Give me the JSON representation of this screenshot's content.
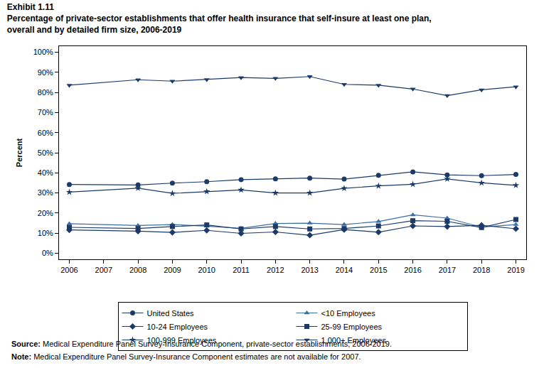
{
  "chart_data": {
    "type": "line",
    "title": "Exhibit 1.11",
    "subtitle": "Percentage of private-sector establishments that offer health insurance that self-insure at least one plan, overall and by detailed firm size, 2006-2019",
    "y_label": "Percent",
    "x": [
      2006,
      2008,
      2009,
      2010,
      2011,
      2012,
      2013,
      2014,
      2015,
      2016,
      2017,
      2018,
      2019
    ],
    "series": [
      {
        "name": "United States",
        "color": "#1b3a68",
        "marker": "circle",
        "values": [
          34.2,
          34.0,
          34.9,
          35.6,
          36.6,
          37.0,
          37.4,
          36.9,
          38.8,
          40.5,
          39.0,
          38.6,
          39.2
        ]
      },
      {
        "name": "<10 Employees",
        "color": "#3a6ea5",
        "marker": "triangle-up",
        "values": [
          14.7,
          13.8,
          14.3,
          13.5,
          12.4,
          14.8,
          15.0,
          14.3,
          15.8,
          19.1,
          17.5,
          13.0,
          14.3
        ]
      },
      {
        "name": "10-24 Employees",
        "color": "#1b3a68",
        "marker": "diamond",
        "values": [
          11.6,
          11.0,
          10.4,
          11.4,
          9.9,
          10.6,
          9.0,
          11.8,
          10.5,
          13.6,
          13.3,
          13.9,
          12.2
        ]
      },
      {
        "name": "25-99 Employees",
        "color": "#1b3a68",
        "marker": "square",
        "values": [
          12.9,
          12.3,
          13.3,
          14.1,
          12.1,
          13.3,
          12.1,
          12.3,
          13.6,
          16.2,
          15.9,
          12.8,
          16.8
        ]
      },
      {
        "name": "100-999 Employees",
        "color": "#1b3a68",
        "marker": "star",
        "values": [
          30.4,
          32.4,
          29.8,
          30.7,
          31.5,
          30.0,
          30.0,
          32.3,
          33.5,
          34.3,
          37.0,
          35.0,
          33.8
        ]
      },
      {
        "name": "1,000+ Employees",
        "color": "#1b3a68",
        "marker": "triangle-down",
        "values": [
          83.6,
          86.3,
          85.6,
          86.4,
          87.4,
          87.0,
          87.9,
          84.0,
          83.6,
          81.7,
          78.4,
          81.3,
          82.8
        ]
      }
    ],
    "xlim": [
      2005.7,
      2019.3
    ],
    "xticks": [
      2006,
      2007,
      2008,
      2009,
      2010,
      2011,
      2012,
      2013,
      2014,
      2015,
      2016,
      2017,
      2018,
      2019
    ],
    "ylim": [
      -3,
      103
    ],
    "yticks": [
      {
        "value": 0,
        "label": "0%"
      },
      {
        "value": 10,
        "label": "10%"
      },
      {
        "value": 20,
        "label": "20%"
      },
      {
        "value": 30,
        "label": "30%"
      },
      {
        "value": 40,
        "label": "40%"
      },
      {
        "value": 50,
        "label": "50%"
      },
      {
        "value": 60,
        "label": "60%"
      },
      {
        "value": 70,
        "label": "70%"
      },
      {
        "value": 80,
        "label": "80%"
      },
      {
        "value": 90,
        "label": "90%"
      },
      {
        "value": 100,
        "label": "100%"
      }
    ],
    "grid": false,
    "legend": "bottom",
    "source": "Source: Medical Expenditure Panel Survey-Insurance Component, private-sector establishments, 2006-2019.",
    "note": "Note: Medical Expenditure Panel Survey-Insurance Component estimates are not available for 2007."
  }
}
